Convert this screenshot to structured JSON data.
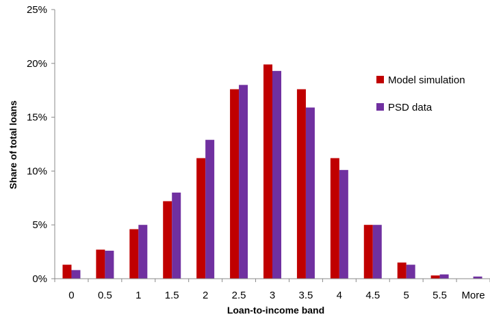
{
  "chart_data": {
    "type": "bar",
    "categories": [
      "0",
      "0.5",
      "1",
      "1.5",
      "2",
      "2.5",
      "3",
      "3.5",
      "4",
      "4.5",
      "5",
      "5.5",
      "More"
    ],
    "series": [
      {
        "name": "Model simulation",
        "color": "#c00000",
        "values": [
          1.3,
          2.7,
          4.6,
          7.2,
          11.2,
          17.6,
          19.9,
          17.6,
          11.2,
          5.0,
          1.5,
          0.3,
          0.0
        ]
      },
      {
        "name": "PSD data",
        "color": "#7030a0",
        "values": [
          0.8,
          2.6,
          5.0,
          8.0,
          12.9,
          18.0,
          19.3,
          15.9,
          10.1,
          5.0,
          1.3,
          0.4,
          0.2
        ]
      }
    ],
    "title": "",
    "xlabel": "Loan-to-income band",
    "ylabel": "Share of total loans",
    "ylim": [
      0,
      25
    ],
    "y_ticks": [
      "0%",
      "5%",
      "10%",
      "15%",
      "20%",
      "25%"
    ],
    "y_tick_values": [
      0,
      5,
      10,
      15,
      20,
      25
    ],
    "grid": false,
    "legend_position": "right"
  }
}
